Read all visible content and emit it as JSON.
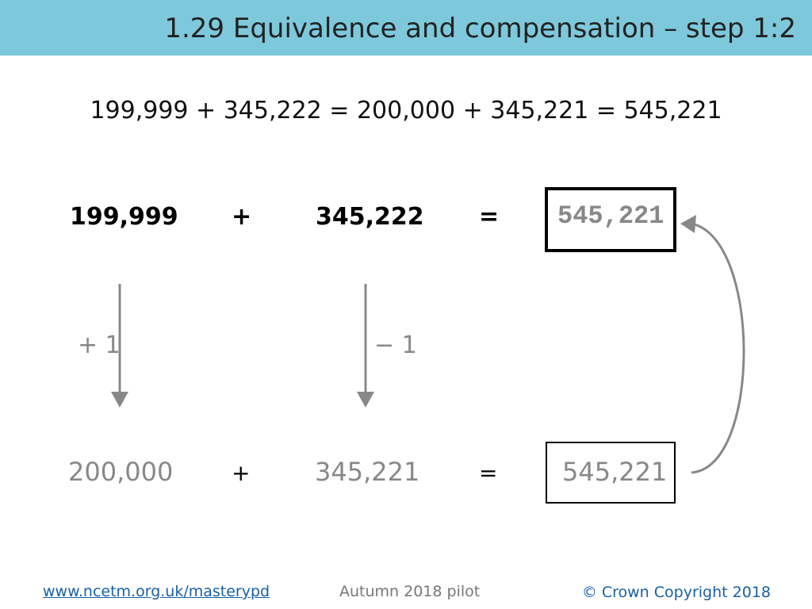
{
  "header": {
    "title": "1.29 Equivalence and compensation – step 1:2"
  },
  "equation": "199,999 + 345,222 = 200,000 + 345,221 = 545,221",
  "top_row": {
    "a": "199,999",
    "op": "+",
    "b": "345,222",
    "eq": "=",
    "result": "545,221"
  },
  "adjustments": {
    "left": "+ 1",
    "right": "− 1"
  },
  "bottom_row": {
    "a": "200,000",
    "op": "+",
    "b": "345,221",
    "eq": "=",
    "result": "545,221"
  },
  "footer": {
    "link": "www.ncetm.org.uk/masterypd",
    "center": "Autumn 2018 pilot",
    "copyright": "© Crown Copyright 2018"
  }
}
